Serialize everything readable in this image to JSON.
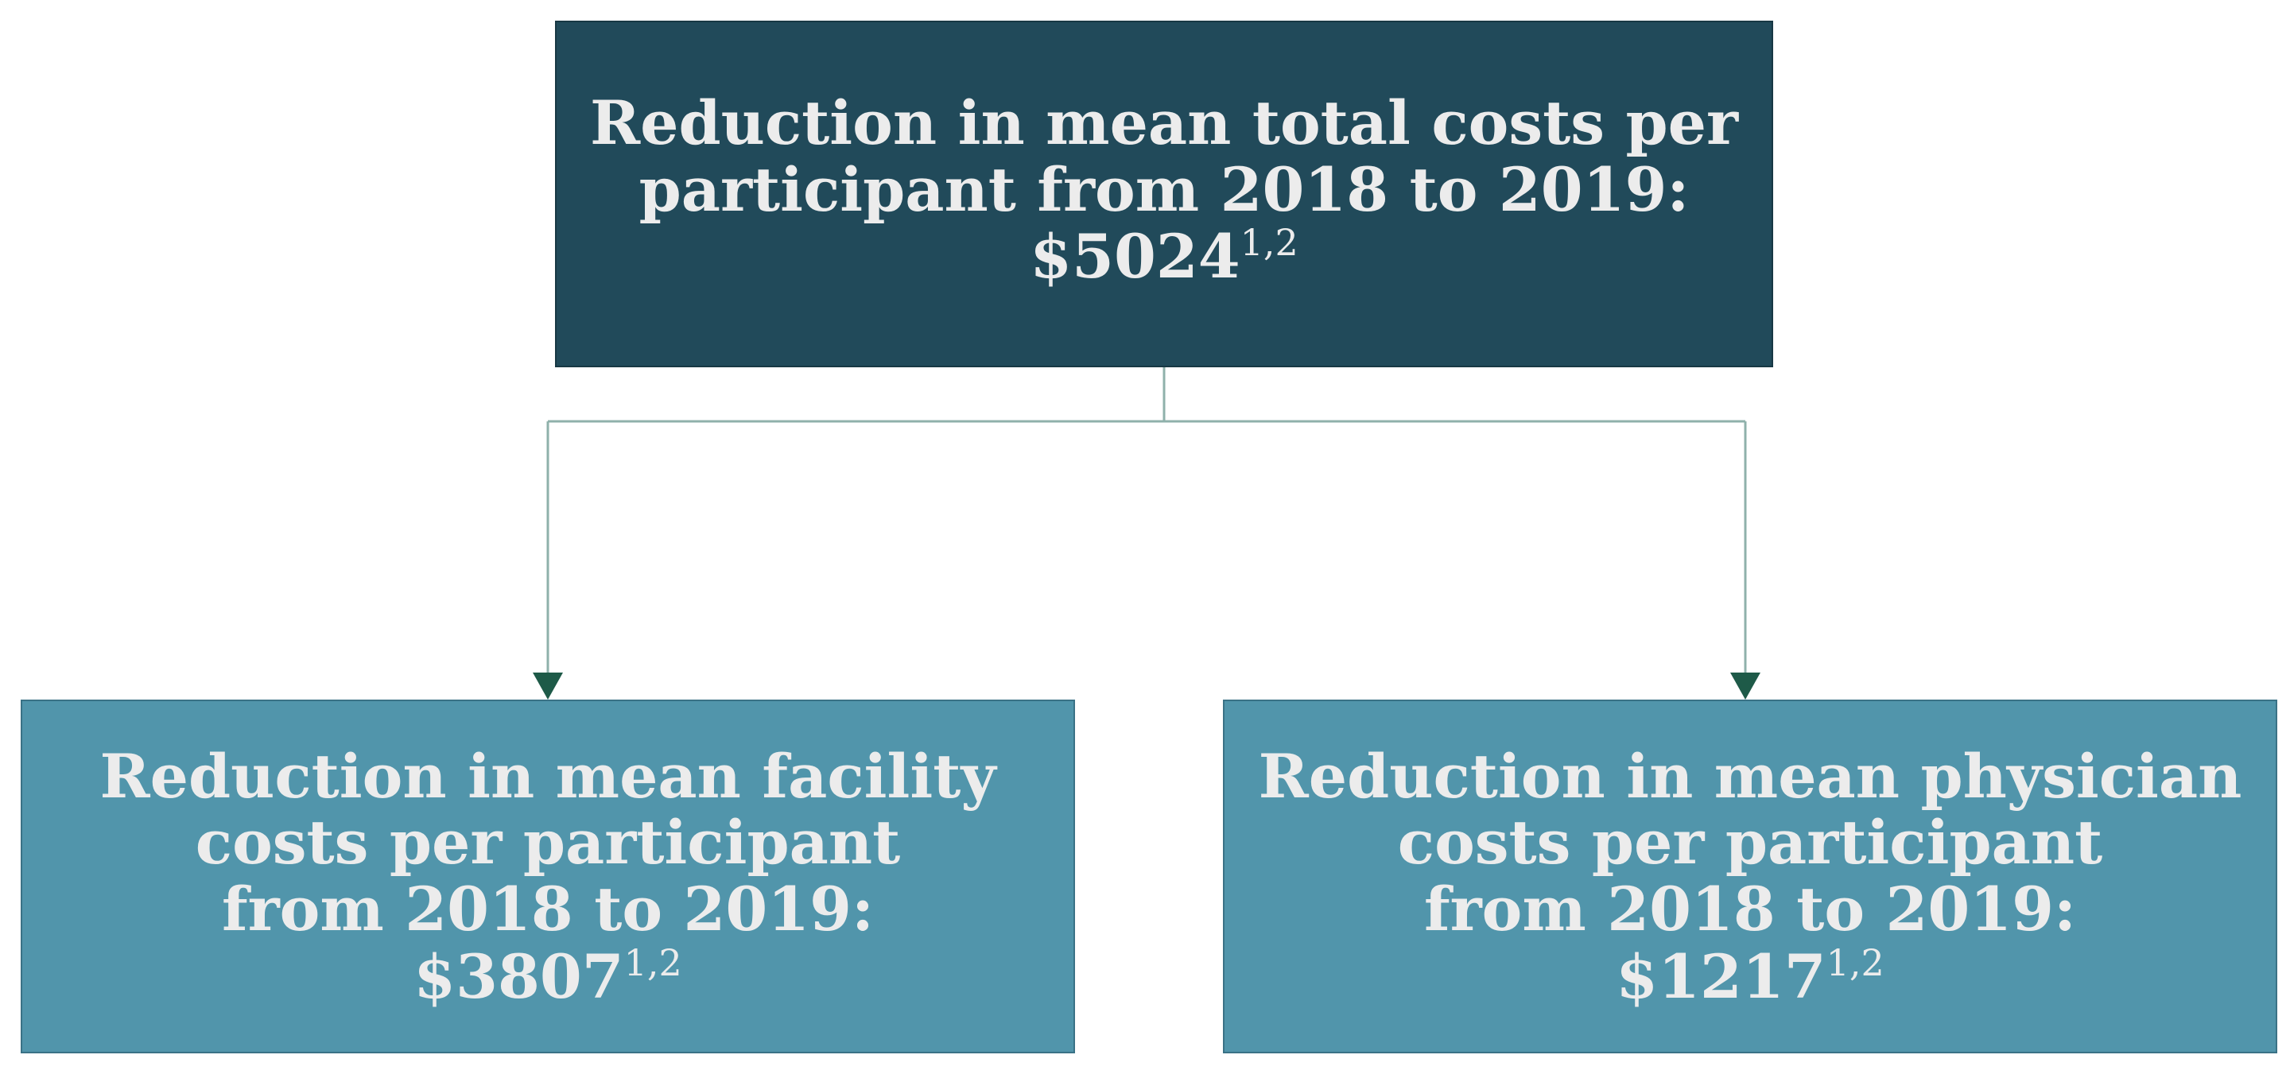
{
  "top_box": {
    "line1": "Reduction in mean total costs per",
    "line2": "participant from 2018 to 2019:",
    "amount": "$5024",
    "footnote": "1,2"
  },
  "left_box": {
    "line1": "Reduction in mean facility",
    "line2": "costs per participant",
    "line3": "from 2018 to 2019:",
    "amount": "$3807",
    "footnote": "1,2"
  },
  "right_box": {
    "line1": "Reduction in mean physician",
    "line2": "costs per participant",
    "line3": "from 2018 to 2019:",
    "amount": "$1217",
    "footnote": "1,2"
  },
  "colors": {
    "top_fill": "#214a5a",
    "child_fill": "#5195ab",
    "connector": "#8fb1ab",
    "arrowhead": "#1e5a48",
    "text": "#ececec"
  }
}
